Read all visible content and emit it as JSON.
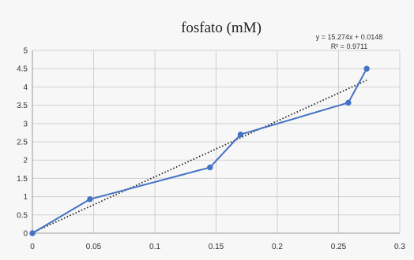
{
  "chart_data": {
    "type": "line",
    "title": "fosfato (mM)",
    "x": [
      0,
      0.047,
      0.145,
      0.17,
      0.258,
      0.273
    ],
    "series": [
      {
        "values": [
          0,
          0.93,
          1.8,
          2.7,
          3.57,
          4.5
        ],
        "color": "#4472c4",
        "marker": "circle"
      }
    ],
    "trendline": {
      "type": "linear",
      "style": "dotted",
      "slope": 15.274,
      "intercept": 0.0148,
      "x_range": [
        0,
        0.273
      ],
      "color": "#222222",
      "equation_label": "y = 15.274x + 0.0148",
      "r2_label": "R² = 0.9711"
    },
    "xlim": [
      0,
      0.3
    ],
    "ylim": [
      0,
      5
    ],
    "x_ticks": [
      0,
      0.05,
      0.1,
      0.15,
      0.2,
      0.25,
      0.3
    ],
    "x_tick_labels": [
      "0",
      "0.05",
      "0.1",
      "0.15",
      "0.2",
      "0.25",
      "0.3"
    ],
    "y_ticks": [
      0,
      0.5,
      1,
      1.5,
      2,
      2.5,
      3,
      3.5,
      4,
      4.5,
      5
    ],
    "y_tick_labels": [
      "0",
      "0.5",
      "1",
      "1.5",
      "2",
      "2.5",
      "3",
      "3.5",
      "4",
      "4.5",
      "5"
    ],
    "grid": true,
    "xlabel": "",
    "ylabel": ""
  }
}
